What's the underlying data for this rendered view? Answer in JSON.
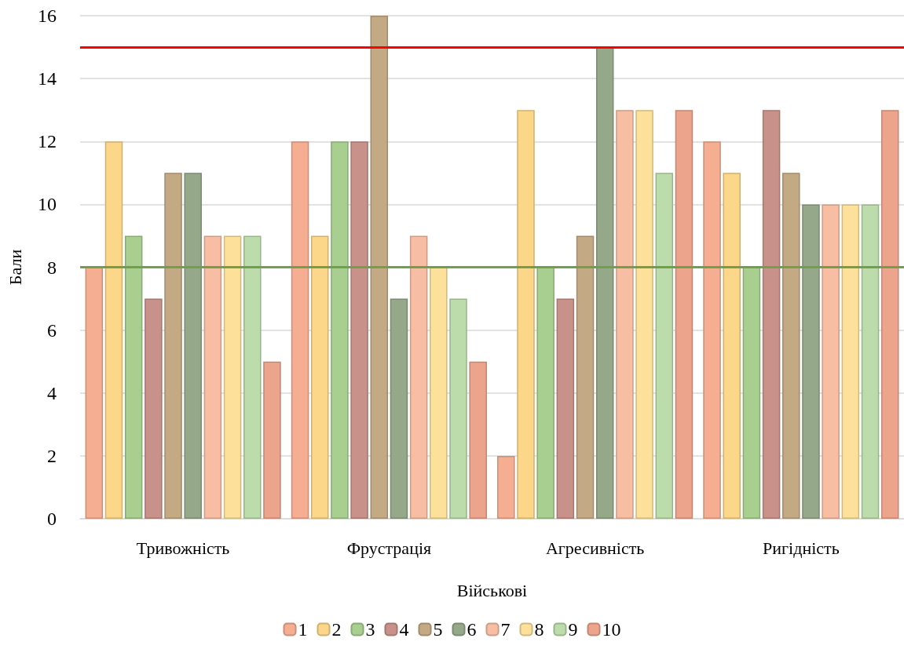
{
  "chart_data": {
    "type": "bar",
    "xlabel": "Військові",
    "ylabel": "Бали",
    "categories": [
      "Тривожність",
      "Фрустрація",
      "Агресивність",
      "Ригідність"
    ],
    "series": [
      {
        "name": "1",
        "color": "#f5ae92",
        "values": [
          8,
          12,
          2,
          12
        ]
      },
      {
        "name": "2",
        "color": "#fdd789",
        "values": [
          12,
          9,
          13,
          11
        ]
      },
      {
        "name": "3",
        "color": "#a8cf8f",
        "values": [
          9,
          12,
          8,
          8
        ]
      },
      {
        "name": "4",
        "color": "#c8928a",
        "values": [
          7,
          12,
          7,
          13
        ]
      },
      {
        "name": "5",
        "color": "#c4a985",
        "values": [
          11,
          16,
          9,
          11
        ]
      },
      {
        "name": "6",
        "color": "#96a88a",
        "values": [
          11,
          7,
          15,
          10
        ]
      },
      {
        "name": "7",
        "color": "#f7bea3",
        "values": [
          9,
          9,
          13,
          10
        ]
      },
      {
        "name": "8",
        "color": "#fde19a",
        "values": [
          9,
          8,
          13,
          10
        ]
      },
      {
        "name": "9",
        "color": "#bcdcab",
        "values": [
          9,
          7,
          11,
          10
        ]
      },
      {
        "name": "10",
        "color": "#eda48c",
        "values": [
          5,
          5,
          13,
          13
        ]
      }
    ],
    "ylim": [
      0,
      16
    ],
    "yticks": [
      0,
      2,
      4,
      6,
      8,
      10,
      12,
      14,
      16
    ],
    "ref_lines": [
      {
        "axis": "y",
        "value": 15,
        "color": "#ff0000"
      },
      {
        "axis": "y",
        "value": 8,
        "color": "#70a04a"
      }
    ],
    "grid": "y",
    "legend": "bottom"
  }
}
